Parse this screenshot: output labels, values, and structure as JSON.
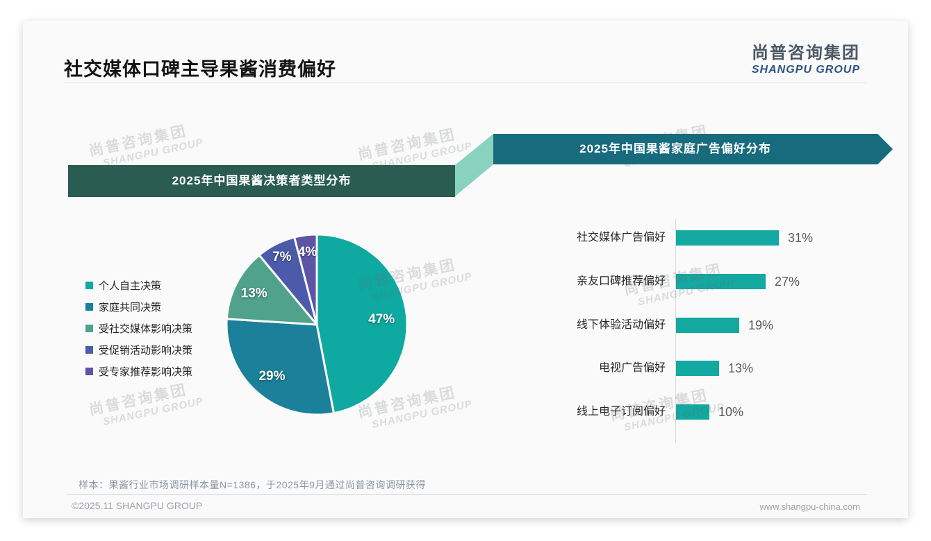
{
  "page": {
    "title": "社交媒体口碑主导果酱消费偏好",
    "logo": {
      "cn": "尚普咨询集团",
      "en": "SHANGPU GROUP"
    },
    "watermark": {
      "cn": "尚普咨询集团",
      "en": "SHANGPU GROUP"
    },
    "footnote": "样本：果酱行业市场调研样本量N=1386，于2025年9月通过尚普咨询调研获得",
    "footer_left": "©2025.11 SHANGPU GROUP",
    "footer_right": "www.shangpu-china.com"
  },
  "colors": {
    "pie_slices": [
      "#0ea9a1",
      "#1b8099",
      "#50a28d",
      "#4b5baa",
      "#5d53a7"
    ],
    "bar": "#13a8a0",
    "banner_left_bg": "#2a5c51",
    "banner_right_bg": "#176b7d",
    "connector_bg": "#8ad2c0"
  },
  "chart_data": [
    {
      "type": "pie",
      "title": "2025年中国果酱决策者类型分布",
      "labels": [
        "个人自主决策",
        "家庭共同决策",
        "受社交媒体影响决策",
        "受促销活动影响决策",
        "受专家推荐影响决策"
      ],
      "values": [
        47,
        29,
        13,
        7,
        4
      ],
      "unit": "%",
      "legend_position": "left",
      "start_angle": "12-oclock-clockwise",
      "slice_labels": [
        "47%",
        "29%",
        "13%",
        "7%",
        "4%"
      ]
    },
    {
      "type": "bar",
      "title": "2025年中国果酱家庭广告偏好分布",
      "orientation": "horizontal",
      "categories": [
        "社交媒体广告偏好",
        "亲友口碑推荐偏好",
        "线下体验活动偏好",
        "电视广告偏好",
        "线上电子订阅偏好"
      ],
      "values": [
        31,
        27,
        19,
        13,
        10
      ],
      "unit": "%",
      "value_labels": [
        "31%",
        "27%",
        "19%",
        "13%",
        "10%"
      ],
      "xlim": [
        0,
        35
      ],
      "grid": false,
      "axis_line": "left-vertical"
    }
  ]
}
